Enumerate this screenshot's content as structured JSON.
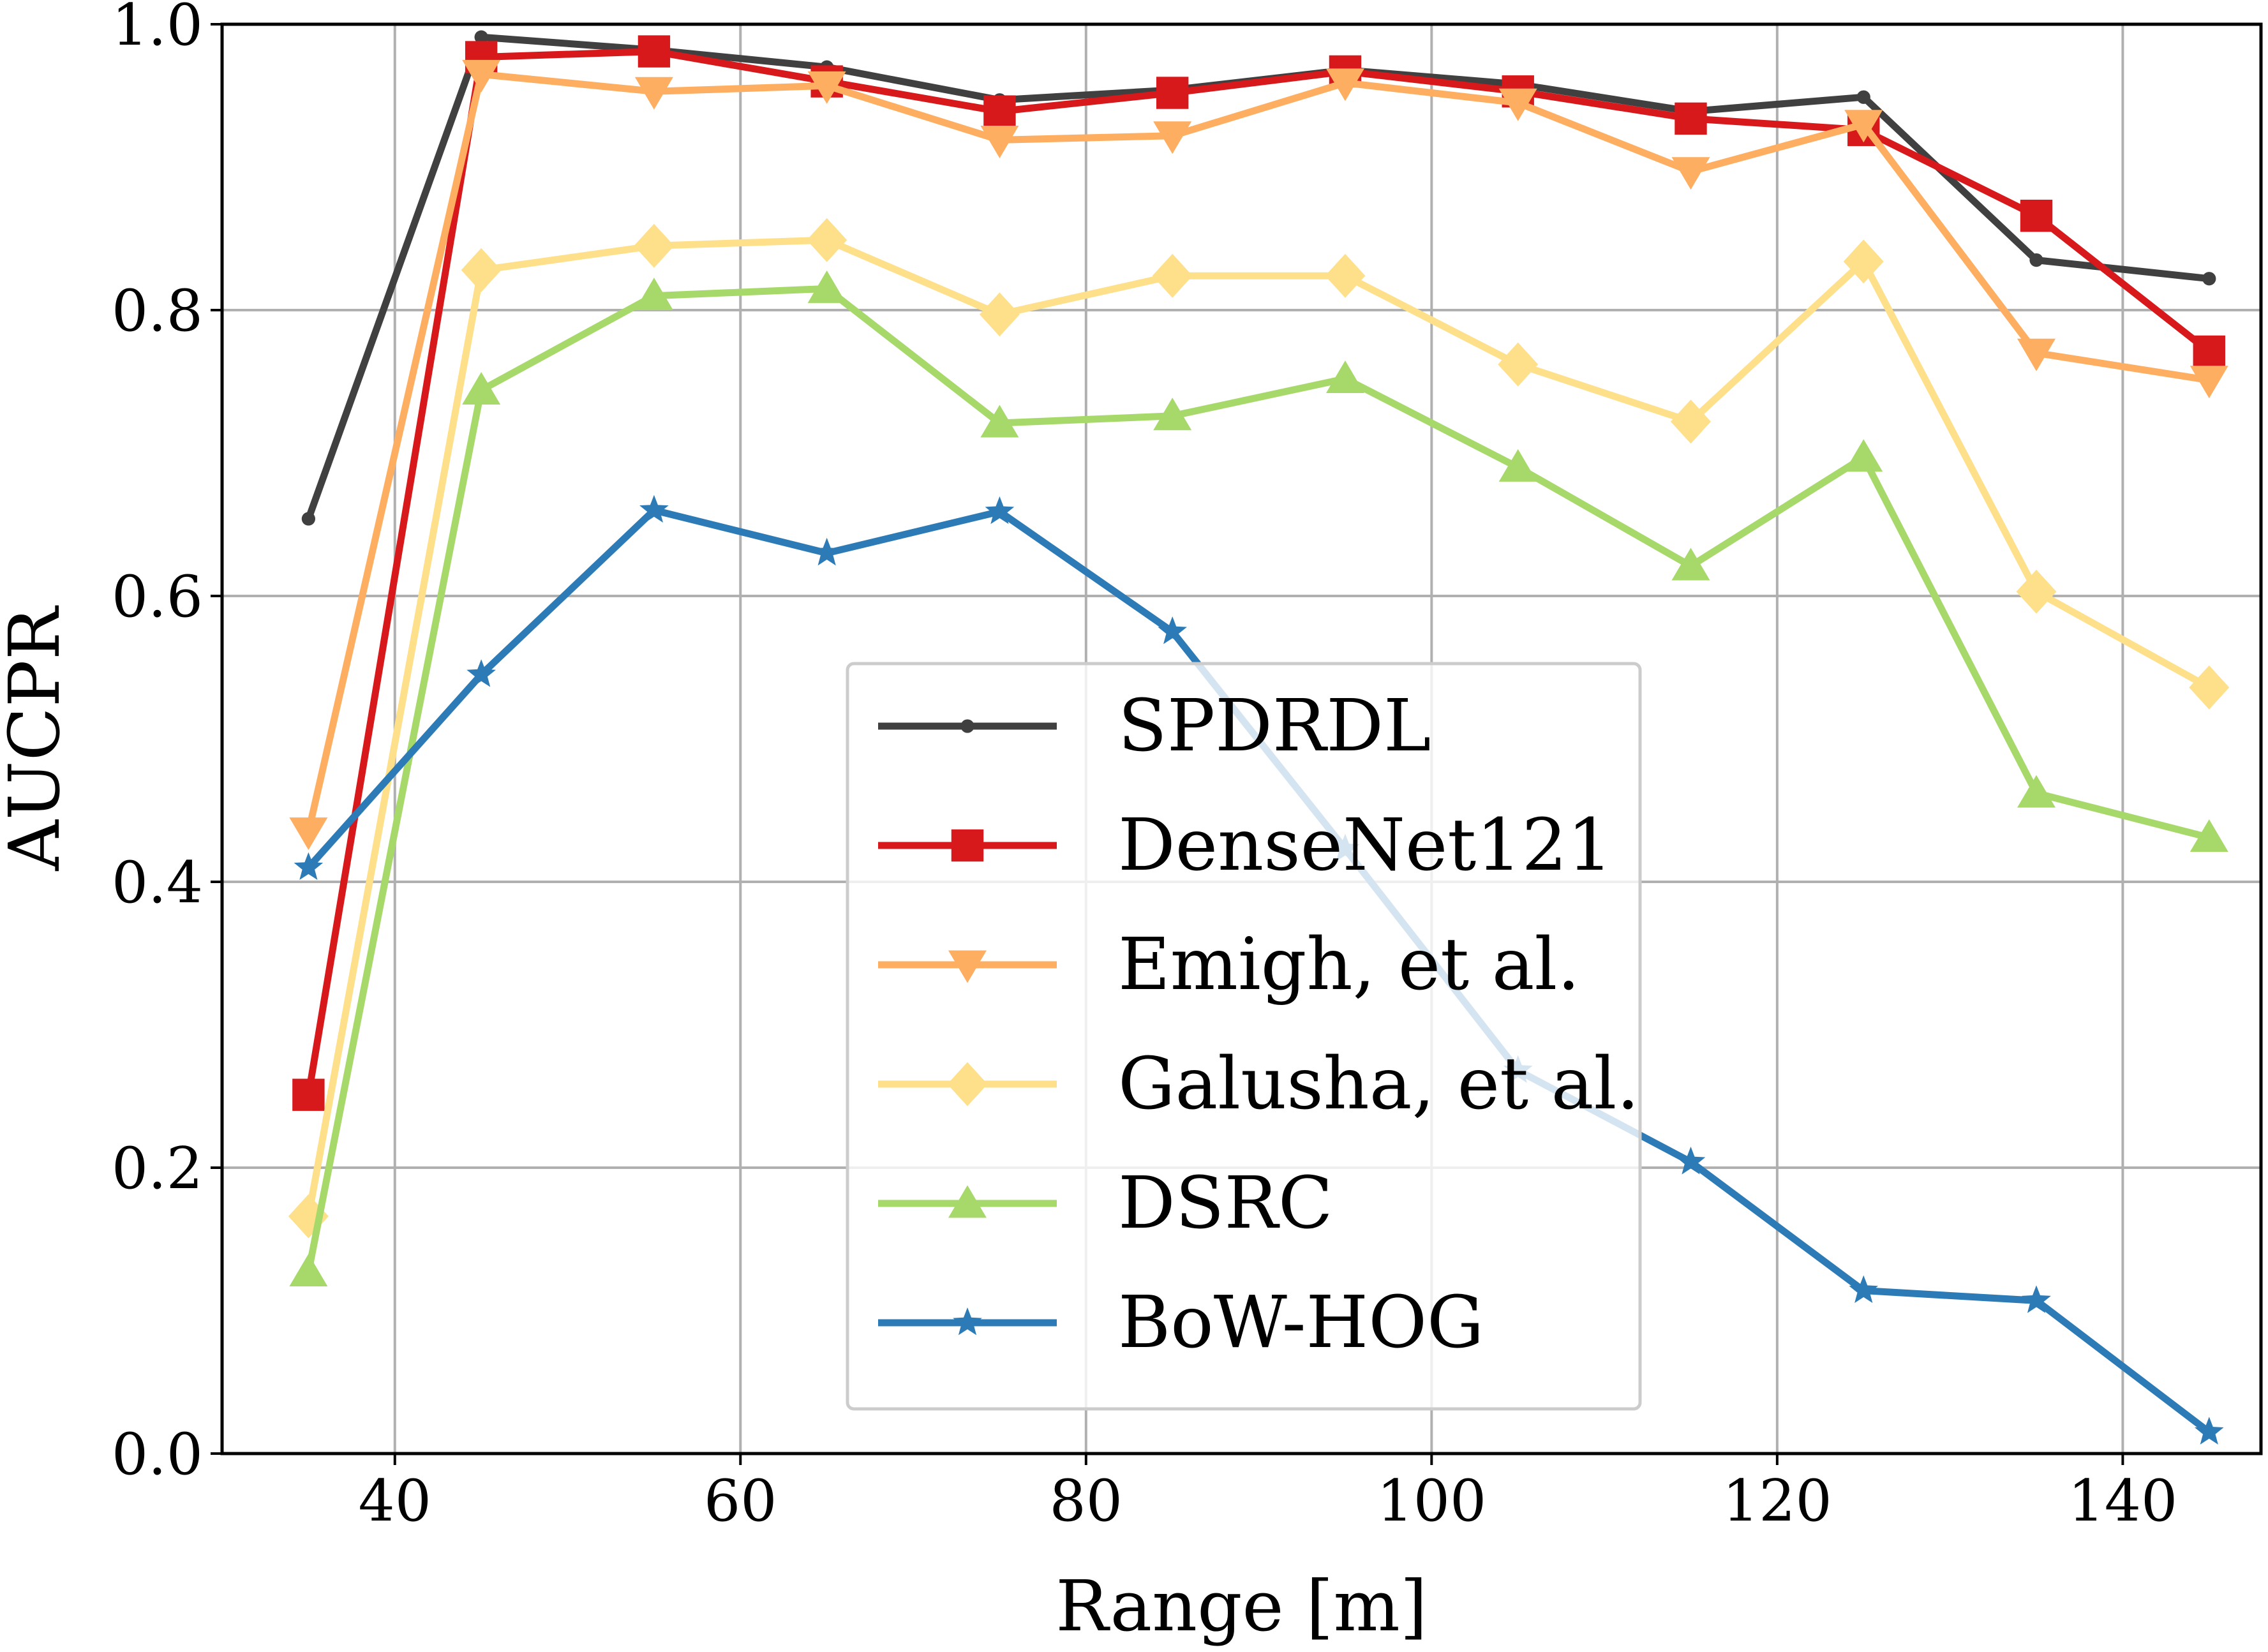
{
  "chart_data": {
    "type": "line",
    "title": "",
    "xlabel": "Range [m]",
    "ylabel": "AUCPR",
    "xlim": [
      30,
      148
    ],
    "ylim": [
      0.0,
      1.0
    ],
    "grid": true,
    "legend_position": "center-bottom",
    "xticks": [
      40,
      60,
      80,
      100,
      120,
      140
    ],
    "xtick_labels": [
      "40",
      "60",
      "80",
      "100",
      "120",
      "140"
    ],
    "yticks": [
      0.0,
      0.2,
      0.4,
      0.6,
      0.8,
      1.0
    ],
    "ytick_labels": [
      "0.0",
      "0.2",
      "0.4",
      "0.6",
      "0.8",
      "1.0"
    ],
    "x": [
      35,
      45,
      55,
      65,
      75,
      85,
      95,
      105,
      115,
      125,
      135,
      145
    ],
    "series": [
      {
        "name": "SPDRDL",
        "color": "#404040",
        "marker": "circle",
        "values": [
          0.654,
          0.991,
          0.982,
          0.97,
          0.947,
          0.954,
          0.968,
          0.958,
          0.939,
          0.949,
          0.835,
          0.822
        ]
      },
      {
        "name": "DenseNet121",
        "color": "#d7191c",
        "marker": "square",
        "values": [
          0.251,
          0.977,
          0.981,
          0.96,
          0.939,
          0.952,
          0.967,
          0.953,
          0.934,
          0.926,
          0.866,
          0.771
        ]
      },
      {
        "name": "Emigh, et al.",
        "color": "#fdae61",
        "marker": "triangle-down",
        "values": [
          0.435,
          0.965,
          0.953,
          0.957,
          0.919,
          0.922,
          0.959,
          0.945,
          0.897,
          0.93,
          0.77,
          0.751
        ]
      },
      {
        "name": "Galusha, et al.",
        "color": "#fee08b",
        "marker": "diamond",
        "values": [
          0.166,
          0.828,
          0.845,
          0.849,
          0.797,
          0.824,
          0.824,
          0.762,
          0.722,
          0.834,
          0.603,
          0.536
        ]
      },
      {
        "name": "DSRC",
        "color": "#a6d96a",
        "marker": "triangle-up",
        "values": [
          0.127,
          0.744,
          0.81,
          0.815,
          0.721,
          0.726,
          0.752,
          0.69,
          0.621,
          0.697,
          0.462,
          0.431
        ]
      },
      {
        "name": "BoW-HOG",
        "color": "#2c7bb6",
        "marker": "star",
        "values": [
          0.41,
          0.545,
          0.66,
          0.63,
          0.659,
          0.575,
          0.423,
          0.268,
          0.204,
          0.114,
          0.107,
          0.015
        ]
      }
    ]
  }
}
